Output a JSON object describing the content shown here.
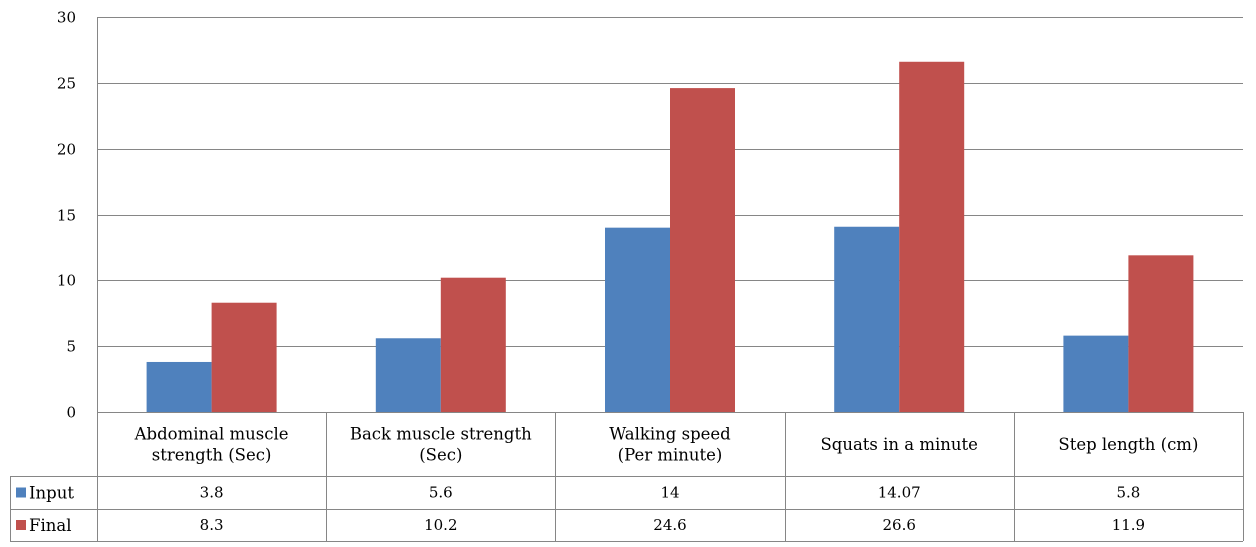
{
  "chart_data": {
    "type": "bar",
    "title": "",
    "xlabel": "",
    "ylabel": "",
    "ylim": [
      0,
      30
    ],
    "yticks": [
      0,
      5,
      10,
      15,
      20,
      25,
      30
    ],
    "grid": true,
    "legend": "data-table",
    "categories": [
      [
        "Abdominal muscle",
        "strength (Sec)"
      ],
      [
        "Back muscle strength",
        "(Sec)"
      ],
      [
        "Walking speed",
        "(Per minute)"
      ],
      [
        "Squats in a minute"
      ],
      [
        "Step length (cm)"
      ]
    ],
    "series": [
      {
        "name": "Input",
        "color": "#4F81BD",
        "values": [
          3.8,
          5.6,
          14,
          14.07,
          5.8
        ]
      },
      {
        "name": "Final",
        "color": "#C0504D",
        "values": [
          8.3,
          10.2,
          24.6,
          26.6,
          11.9
        ]
      }
    ],
    "table": [
      [
        "3.8",
        "5.6",
        "14",
        "14.07",
        "5.8"
      ],
      [
        "8.3",
        "10.2",
        "24.6",
        "26.6",
        "11.9"
      ]
    ]
  }
}
